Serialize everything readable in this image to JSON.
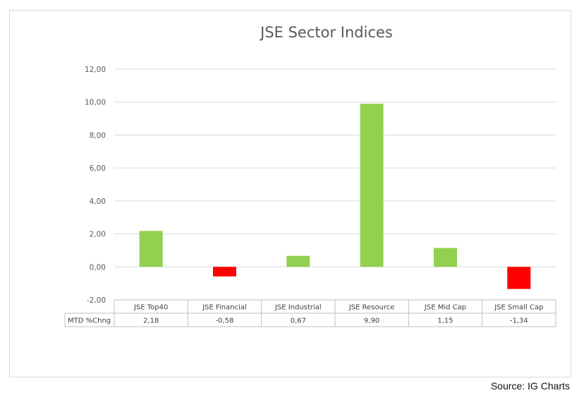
{
  "chart_data": {
    "type": "bar",
    "title": "JSE Sector Indices",
    "categories": [
      "JSE Top40",
      "JSE Financial",
      "JSE Industrial",
      "JSE Resource",
      "JSE Mid Cap",
      "JSE Small Cap"
    ],
    "series": [
      {
        "name": "MTD %Chng",
        "values": [
          2.18,
          -0.58,
          0.67,
          9.9,
          1.15,
          -1.34
        ]
      }
    ],
    "value_labels": [
      "2,18",
      "-0,58",
      "0,67",
      "9,90",
      "1,15",
      "-1,34"
    ],
    "yticks": [
      "-2,00",
      "0,00",
      "2,00",
      "4,00",
      "6,00",
      "8,00",
      "10,00",
      "12,00"
    ],
    "ylim": [
      -2,
      12
    ],
    "grid": true,
    "legend": "none",
    "data_table": true,
    "colors": {
      "positive": "#92d050",
      "negative": "#ff0000",
      "grid": "#d9d9d9",
      "text": "#595959"
    }
  },
  "source": "Source: IG Charts"
}
